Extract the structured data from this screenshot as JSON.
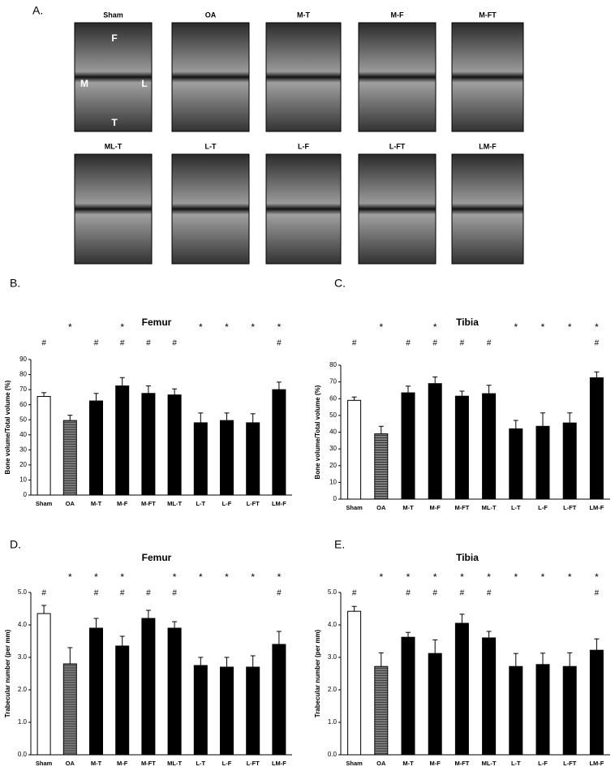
{
  "images": {
    "panel": "A.",
    "labels": [
      "Sham",
      "OA",
      "M-T",
      "M-F",
      "M-FT",
      "ML-T",
      "L-T",
      "L-F",
      "L-FT",
      "LM-F"
    ],
    "sham_markers": [
      "F",
      "M",
      "L",
      "T"
    ]
  },
  "chart_data": [
    {
      "type": "bar",
      "panel": "B.",
      "title": "Femur",
      "ylabel": "Bone volume/Total volume  (%)",
      "categories": [
        "Sham",
        "OA",
        "M-T",
        "M-F",
        "M-FT",
        "ML-T",
        "L-T",
        "L-F",
        "L-FT",
        "LM-F"
      ],
      "values": [
        65.5,
        49.5,
        62.5,
        72.5,
        67.5,
        66.5,
        48,
        49.5,
        48,
        70
      ],
      "errors": [
        2.5,
        3.5,
        5,
        5.5,
        5,
        4,
        6.5,
        5,
        6,
        5
      ],
      "colors": [
        "#ffffff",
        "#808080",
        "#000000",
        "#000000",
        "#000000",
        "#000000",
        "#000000",
        "#000000",
        "#000000",
        "#000000"
      ],
      "stars": [
        null,
        "*",
        null,
        "*",
        null,
        null,
        "*",
        "*",
        "*",
        "*"
      ],
      "hashes": [
        "#",
        null,
        "#",
        "#",
        "#",
        "#",
        null,
        null,
        null,
        "#"
      ],
      "ylim": [
        0,
        90
      ],
      "yticks": [
        0,
        10,
        20,
        30,
        40,
        50,
        60,
        70,
        80,
        90
      ]
    },
    {
      "type": "bar",
      "panel": "C.",
      "title": "Tibia",
      "ylabel": "Bone volume/Total volume  (%)",
      "categories": [
        "Sham",
        "OA",
        "M-T",
        "M-F",
        "M-FT",
        "ML-T",
        "L-T",
        "L-F",
        "L-FT",
        "LM-F"
      ],
      "values": [
        59,
        39,
        63.5,
        69,
        61.5,
        63,
        42,
        43.5,
        45.5,
        72.5
      ],
      "errors": [
        2,
        4.5,
        4,
        4,
        3,
        5,
        5,
        8,
        6,
        3.5
      ],
      "colors": [
        "#ffffff",
        "#808080",
        "#000000",
        "#000000",
        "#000000",
        "#000000",
        "#000000",
        "#000000",
        "#000000",
        "#000000"
      ],
      "stars": [
        null,
        "*",
        null,
        "*",
        null,
        null,
        "*",
        "*",
        "*",
        "*"
      ],
      "hashes": [
        "#",
        null,
        "#",
        "#",
        "#",
        "#",
        null,
        null,
        null,
        "#"
      ],
      "ylim": [
        0,
        80
      ],
      "yticks": [
        0,
        10,
        20,
        30,
        40,
        50,
        60,
        70,
        80
      ]
    },
    {
      "type": "bar",
      "panel": "D.",
      "title": "Femur",
      "ylabel": "Trabecular  number  (per mm)",
      "categories": [
        "Sham",
        "OA",
        "M-T",
        "M-F",
        "M-FT",
        "ML-T",
        "L-T",
        "L-F",
        "L-FT",
        "LM-F"
      ],
      "values": [
        4.35,
        2.8,
        3.9,
        3.35,
        4.2,
        3.9,
        2.75,
        2.7,
        2.7,
        3.4
      ],
      "errors": [
        0.25,
        0.5,
        0.3,
        0.3,
        0.25,
        0.2,
        0.25,
        0.3,
        0.35,
        0.4
      ],
      "colors": [
        "#ffffff",
        "#808080",
        "#000000",
        "#000000",
        "#000000",
        "#000000",
        "#000000",
        "#000000",
        "#000000",
        "#000000"
      ],
      "stars": [
        null,
        "*",
        "*",
        "*",
        null,
        "*",
        "*",
        "*",
        "*",
        "*"
      ],
      "hashes": [
        "#",
        null,
        "#",
        "#",
        "#",
        "#",
        null,
        null,
        null,
        "#"
      ],
      "ylim": [
        0,
        5
      ],
      "yticks": [
        {
          "value": 0,
          "label": "0.0"
        },
        {
          "value": 1,
          "label": "1.0"
        },
        {
          "value": 2,
          "label": "2.0"
        },
        {
          "value": 3,
          "label": "3.0"
        },
        {
          "value": 4,
          "label": "4.0"
        },
        {
          "value": 5,
          "label": "5.0"
        }
      ]
    },
    {
      "type": "bar",
      "panel": "E.",
      "title": "Tibia",
      "ylabel": "Trabecular  number  (per mm)",
      "categories": [
        "Sham",
        "OA",
        "M-T",
        "M-F",
        "M-FT",
        "ML-T",
        "L-T",
        "L-F",
        "L-FT",
        "LM-F"
      ],
      "values": [
        4.42,
        2.72,
        3.62,
        3.12,
        4.05,
        3.6,
        2.72,
        2.78,
        2.72,
        3.22
      ],
      "errors": [
        0.15,
        0.42,
        0.15,
        0.42,
        0.28,
        0.2,
        0.4,
        0.35,
        0.42,
        0.35
      ],
      "colors": [
        "#ffffff",
        "#808080",
        "#000000",
        "#000000",
        "#000000",
        "#000000",
        "#000000",
        "#000000",
        "#000000",
        "#000000"
      ],
      "stars": [
        null,
        "*",
        "*",
        "*",
        "*",
        "*",
        "*",
        "*",
        "*",
        "*"
      ],
      "hashes": [
        "#",
        null,
        "#",
        "#",
        "#",
        "#",
        null,
        null,
        null,
        "#"
      ],
      "ylim": [
        0,
        5
      ],
      "yticks": [
        {
          "value": 0,
          "label": "0.0"
        },
        {
          "value": 1,
          "label": "1.0"
        },
        {
          "value": 2,
          "label": "2.0"
        },
        {
          "value": 3,
          "label": "3.0"
        },
        {
          "value": 4,
          "label": "4.0"
        },
        {
          "value": 5,
          "label": "5.0"
        }
      ]
    }
  ]
}
